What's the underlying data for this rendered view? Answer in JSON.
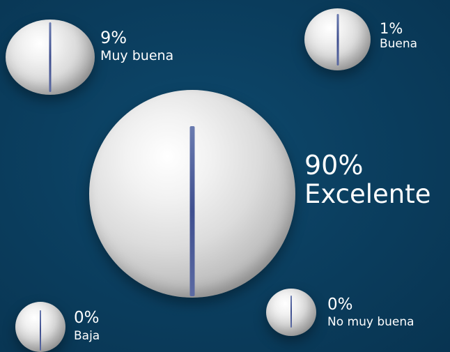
{
  "colors": {
    "background": "#0b3f60",
    "text": "#ffffff",
    "ball": "#d9d9d9",
    "seam": "#44549a"
  },
  "ratings": [
    {
      "key": "muy-buena",
      "percent": "9%",
      "label": "Muy buena"
    },
    {
      "key": "buena",
      "percent": "1%",
      "label": "Buena"
    },
    {
      "key": "excelente",
      "percent": "90%",
      "label": "Excelente"
    },
    {
      "key": "baja",
      "percent": "0%",
      "label": "Baja"
    },
    {
      "key": "no-muy-buena",
      "percent": "0%",
      "label": "No muy buena"
    }
  ]
}
